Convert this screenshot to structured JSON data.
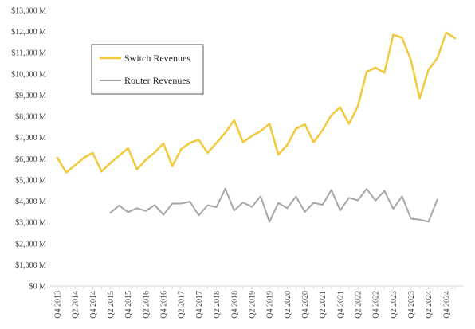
{
  "chart_data": {
    "type": "line",
    "title": "",
    "xlabel": "",
    "ylabel": "",
    "ylim": [
      0,
      13000
    ],
    "y_ticks": [
      0,
      1000,
      2000,
      3000,
      4000,
      5000,
      6000,
      7000,
      8000,
      9000,
      10000,
      11000,
      12000,
      13000
    ],
    "y_tick_labels": [
      "$0 M",
      "$1,000 M",
      "$2,000 M",
      "$3,000 M",
      "$4,000 M",
      "$5,000 M",
      "$6,000 M",
      "$7,000 M",
      "$8,000 M",
      "$9,000 M",
      "$10,000 M",
      "$11,000 M",
      "$12,000 M",
      "$13,000 M"
    ],
    "grid": false,
    "legend_position": "top-left",
    "categories": [
      "Q4 2013",
      "Q1 2014",
      "Q2 2014",
      "Q3 2014",
      "Q4 2014",
      "Q1 2015",
      "Q2 2015",
      "Q3 2015",
      "Q4 2015",
      "Q1 2016",
      "Q2 2016",
      "Q3 2016",
      "Q4 2016",
      "Q1 2017",
      "Q2 2017",
      "Q3 2017",
      "Q4 2017",
      "Q1 2018",
      "Q2 2018",
      "Q3 2018",
      "Q4 2018",
      "Q1 2019",
      "Q2 2019",
      "Q3 2019",
      "Q4 2019",
      "Q1 2020",
      "Q2 2020",
      "Q3 2020",
      "Q4 2020",
      "Q1 2021",
      "Q2 2021",
      "Q3 2021",
      "Q4 2021",
      "Q1 2022",
      "Q2 2022",
      "Q3 2022",
      "Q4 2022",
      "Q1 2023",
      "Q2 2023",
      "Q3 2023",
      "Q4 2023",
      "Q1 2024",
      "Q2 2024",
      "Q3 2024",
      "Q4 2024",
      "Q1 2025"
    ],
    "x_tick_labels": [
      "Q4 2013",
      "",
      "Q2 2014",
      "",
      "Q4 2014",
      "",
      "Q2 2015",
      "",
      "Q4 2015",
      "",
      "Q2 2016",
      "",
      "Q4 2016",
      "",
      "Q2 2017",
      "",
      "Q4 2017",
      "",
      "Q2 2018",
      "",
      "Q4 2018",
      "",
      "Q2 2019",
      "",
      "Q4 2019",
      "",
      "Q2 2020",
      "",
      "Q4 2020",
      "",
      "Q2 2021",
      "",
      "Q4 2021",
      "",
      "Q2 2022",
      "",
      "Q4 2022",
      "",
      "Q2 2023",
      "",
      "Q4 2023",
      "",
      "Q2 2024",
      "",
      "Q4 2024",
      ""
    ],
    "series": [
      {
        "name": "Switch Revenues",
        "color": "#F2C93A",
        "values": [
          6050,
          5350,
          5700,
          6050,
          6280,
          5400,
          5800,
          6150,
          6500,
          5500,
          5950,
          6300,
          6720,
          5650,
          6450,
          6750,
          6900,
          6280,
          6750,
          7230,
          7820,
          6780,
          7080,
          7300,
          7650,
          6200,
          6650,
          7420,
          7620,
          6780,
          7350,
          8060,
          8430,
          7650,
          8480,
          10100,
          10300,
          10050,
          11850,
          11700,
          10650,
          8850,
          10200,
          10750,
          11950,
          11680
        ]
      },
      {
        "name": "Router Revenues",
        "color": "#A6A6A6",
        "values": [
          null,
          null,
          null,
          null,
          null,
          null,
          3450,
          3800,
          3480,
          3670,
          3540,
          3820,
          3360,
          3890,
          3890,
          3980,
          3330,
          3810,
          3720,
          4590,
          3560,
          3940,
          3730,
          4230,
          3030,
          3920,
          3670,
          4220,
          3490,
          3930,
          3830,
          4530,
          3570,
          4160,
          4040,
          4580,
          4030,
          4490,
          3640,
          4230,
          3180,
          3130,
          3030,
          4080,
          null,
          null
        ]
      }
    ]
  }
}
